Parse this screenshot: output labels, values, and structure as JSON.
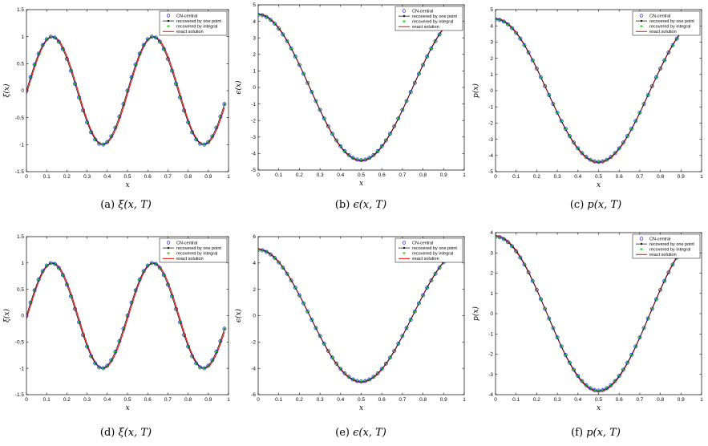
{
  "chart_data": [
    {
      "panel": "a",
      "type": "line",
      "caption": {
        "label": "(a)",
        "expr": "ξ(x, T)"
      },
      "xlabel": "x",
      "ylabel": "ξ(x)",
      "xlim": [
        0,
        1
      ],
      "ylim": [
        -1.5,
        1.5
      ],
      "xticks": [
        "0",
        "0.1",
        "0.2",
        "0.3",
        "0.4",
        "0.5",
        "0.6",
        "0.7",
        "0.8",
        "0.9",
        "1"
      ],
      "yticks": [
        "-1.5",
        "-1",
        "-0.5",
        "0",
        "0.5",
        "1",
        "1.5"
      ],
      "legend": {
        "position": "top-right",
        "entries": [
          "CN-central",
          "recovered by one point",
          "recovered by integral",
          "exact solution"
        ]
      },
      "series": [
        {
          "name": "CN-central",
          "formula": "sin(4πx)",
          "x_start": 0.0,
          "x_end": 0.98,
          "n_points": 50,
          "amplitude": 1.0
        },
        {
          "name": "recovered by one point",
          "formula": "sin(4πx)",
          "x_start": 0.0,
          "x_end": 0.98,
          "n_points": 50,
          "amplitude": 1.0
        },
        {
          "name": "recovered by integral",
          "formula": "sin(4πx)",
          "x_start": 0.0,
          "x_end": 0.98,
          "n_points": 50,
          "amplitude": 1.0
        },
        {
          "name": "exact solution",
          "formula": "sin(4π(x-0.005))",
          "x_start": 0.0,
          "x_end": 0.98,
          "n_points": 200,
          "amplitude": 1.0
        }
      ]
    },
    {
      "panel": "b",
      "type": "line",
      "caption": {
        "label": "(b)",
        "expr": "ϵ(x, T)"
      },
      "xlabel": "x",
      "ylabel": "ϵ(x)",
      "xlim": [
        0,
        1
      ],
      "ylim": [
        -5,
        5
      ],
      "xticks": [
        "0",
        "0.1",
        "0.2",
        "0.3",
        "0.4",
        "0.5",
        "0.6",
        "0.7",
        "0.8",
        "0.9",
        "1"
      ],
      "yticks": [
        "-5",
        "-4",
        "-3",
        "-2",
        "-1",
        "0",
        "1",
        "2",
        "3",
        "4",
        "5"
      ],
      "legend": {
        "position": "top-right",
        "entries": [
          "CN-central",
          "recovered by one point",
          "recovered by integral",
          "exact solution"
        ]
      },
      "series": [
        {
          "name": "CN-central",
          "formula": "A·cos(2πx)",
          "x_start": 0.0,
          "x_end": 0.98,
          "n_points": 50,
          "amplitude": 4.4
        },
        {
          "name": "recovered by one point",
          "formula": "A·cos(2πx)",
          "x_start": 0.0,
          "x_end": 0.98,
          "n_points": 50,
          "amplitude": 4.4
        },
        {
          "name": "recovered by integral",
          "formula": "A·cos(2πx)",
          "x_start": 0.0,
          "x_end": 0.98,
          "n_points": 50,
          "amplitude": 4.4
        },
        {
          "name": "exact solution",
          "formula": "A·cos(2πx)",
          "x_start": 0.0,
          "x_end": 0.98,
          "n_points": 200,
          "amplitude": 4.45
        }
      ]
    },
    {
      "panel": "c",
      "type": "line",
      "caption": {
        "label": "(c)",
        "expr": "p(x, T)"
      },
      "xlabel": "x",
      "ylabel": "p(x)",
      "xlim": [
        0,
        1
      ],
      "ylim": [
        -5,
        5
      ],
      "xticks": [
        "0",
        "0.1",
        "0.2",
        "0.3",
        "0.4",
        "0.5",
        "0.6",
        "0.7",
        "0.8",
        "0.9",
        "1"
      ],
      "yticks": [
        "-5",
        "-4",
        "-3",
        "-2",
        "-1",
        "0",
        "1",
        "2",
        "3",
        "4",
        "5"
      ],
      "legend": {
        "position": "top-right",
        "entries": [
          "CN-central",
          "recovered by one point",
          "recovered by integral",
          "exact solution"
        ]
      },
      "series": [
        {
          "name": "CN-central",
          "formula": "A·cos(2πx)",
          "x_start": 0.0,
          "x_end": 0.98,
          "n_points": 50,
          "amplitude": 4.4
        },
        {
          "name": "recovered by one point",
          "formula": "A·cos(2πx)",
          "x_start": 0.0,
          "x_end": 0.98,
          "n_points": 50,
          "amplitude": 4.4
        },
        {
          "name": "recovered by integral",
          "formula": "A·cos(2πx)",
          "x_start": 0.0,
          "x_end": 0.98,
          "n_points": 50,
          "amplitude": 4.4
        },
        {
          "name": "exact solution",
          "formula": "A·cos(2πx)",
          "x_start": 0.0,
          "x_end": 0.98,
          "n_points": 200,
          "amplitude": 4.45
        }
      ]
    },
    {
      "panel": "d",
      "type": "line",
      "caption": {
        "label": "(d)",
        "expr": "ξ(x, T)"
      },
      "xlabel": "x",
      "ylabel": "ξ(x)",
      "xlim": [
        0,
        1
      ],
      "ylim": [
        -1.5,
        1.5
      ],
      "xticks": [
        "0",
        "0.1",
        "0.2",
        "0.3",
        "0.4",
        "0.5",
        "0.6",
        "0.7",
        "0.8",
        "0.9",
        "1"
      ],
      "yticks": [
        "-1.5",
        "-1",
        "-0.5",
        "0",
        "0.5",
        "1",
        "1.5"
      ],
      "legend": {
        "position": "top-right",
        "entries": [
          "CN-central",
          "recovered by one point",
          "recovered by integral",
          "exact solution"
        ]
      },
      "series": [
        {
          "name": "CN-central",
          "formula": "sin(4πx)",
          "x_start": 0.0,
          "x_end": 0.98,
          "n_points": 50,
          "amplitude": 1.0
        },
        {
          "name": "recovered by one point",
          "formula": "sin(4πx)",
          "x_start": 0.0,
          "x_end": 0.98,
          "n_points": 50,
          "amplitude": 1.0
        },
        {
          "name": "recovered by integral",
          "formula": "sin(4πx)",
          "x_start": 0.0,
          "x_end": 0.98,
          "n_points": 50,
          "amplitude": 1.0
        },
        {
          "name": "exact solution",
          "formula": "sin(4π(x-0.005))",
          "x_start": 0.0,
          "x_end": 0.98,
          "n_points": 200,
          "amplitude": 1.0
        }
      ]
    },
    {
      "panel": "e",
      "type": "line",
      "caption": {
        "label": "(e)",
        "expr": "ϵ(x, T)"
      },
      "xlabel": "x",
      "ylabel": "ϵ(x)",
      "xlim": [
        0,
        1
      ],
      "ylim": [
        -6,
        6
      ],
      "xticks": [
        "0",
        "0.1",
        "0.2",
        "0.3",
        "0.4",
        "0.5",
        "0.6",
        "0.7",
        "0.8",
        "0.9",
        "1"
      ],
      "yticks": [
        "-6",
        "-4",
        "-2",
        "0",
        "2",
        "4",
        "6"
      ],
      "legend": {
        "position": "top-right",
        "entries": [
          "CN-central",
          "recovered by one point",
          "recovered by integral",
          "exact solution"
        ]
      },
      "series": [
        {
          "name": "CN-central",
          "formula": "A·cos(2πx)",
          "x_start": 0.0,
          "x_end": 0.98,
          "n_points": 50,
          "amplitude": 5.0
        },
        {
          "name": "recovered by one point",
          "formula": "A·cos(2πx)",
          "x_start": 0.0,
          "x_end": 0.98,
          "n_points": 50,
          "amplitude": 5.0
        },
        {
          "name": "recovered by integral",
          "formula": "A·cos(2πx)",
          "x_start": 0.0,
          "x_end": 0.98,
          "n_points": 50,
          "amplitude": 5.0
        },
        {
          "name": "exact solution",
          "formula": "A·cos(2πx)",
          "x_start": 0.0,
          "x_end": 0.98,
          "n_points": 200,
          "amplitude": 5.05
        }
      ]
    },
    {
      "panel": "f",
      "type": "line",
      "caption": {
        "label": "(f)",
        "expr": "p(x, T)"
      },
      "xlabel": "x",
      "ylabel": "p(x)",
      "xlim": [
        0,
        1
      ],
      "ylim": [
        -4,
        4
      ],
      "xticks": [
        "0",
        "0.1",
        "0.2",
        "0.3",
        "0.4",
        "0.5",
        "0.6",
        "0.7",
        "0.8",
        "0.9",
        "1"
      ],
      "yticks": [
        "-4",
        "-3",
        "-2",
        "-1",
        "0",
        "1",
        "2",
        "3",
        "4"
      ],
      "legend": {
        "position": "top-right",
        "entries": [
          "CN-central",
          "recovered by one point",
          "recovered by integral",
          "exact solution"
        ]
      },
      "series": [
        {
          "name": "CN-central",
          "formula": "A·cos(2πx)",
          "x_start": 0.0,
          "x_end": 0.98,
          "n_points": 50,
          "amplitude": 3.8
        },
        {
          "name": "recovered by one point",
          "formula": "A·cos(2πx)",
          "x_start": 0.0,
          "x_end": 0.98,
          "n_points": 50,
          "amplitude": 3.8
        },
        {
          "name": "recovered by integral",
          "formula": "A·cos(2πx)",
          "x_start": 0.0,
          "x_end": 0.98,
          "n_points": 50,
          "amplitude": 3.8
        },
        {
          "name": "exact solution",
          "formula": "A·cos(2πx)",
          "x_start": 0.0,
          "x_end": 0.98,
          "n_points": 200,
          "amplitude": 3.85
        }
      ]
    }
  ],
  "colors": {
    "cn_central_marker": "#0000ff",
    "one_point_line": "#000000",
    "integral_marker": "#00c800",
    "exact_line": "#ff0000",
    "axes": "#000000"
  }
}
